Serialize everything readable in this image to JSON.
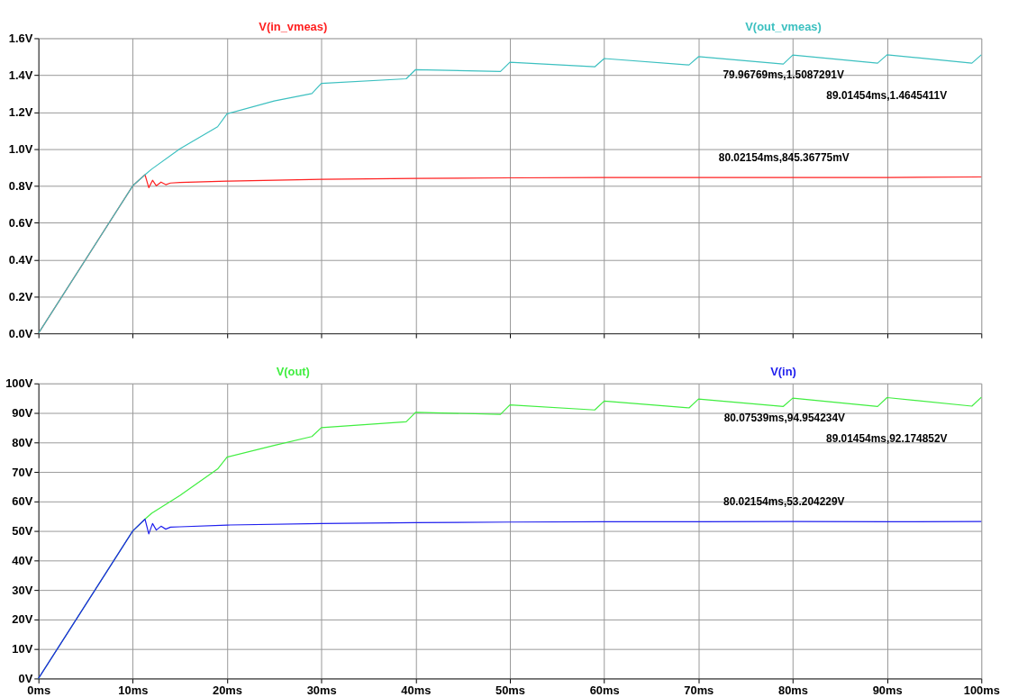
{
  "chart_data": [
    {
      "type": "line",
      "xlim": [
        0,
        100
      ],
      "ylim": [
        0,
        1.6
      ],
      "xticks": [
        {
          "value": 0,
          "label": null
        },
        {
          "value": 10,
          "label": null
        },
        {
          "value": 20,
          "label": null
        },
        {
          "value": 30,
          "label": null
        },
        {
          "value": 40,
          "label": null
        },
        {
          "value": 50,
          "label": null
        },
        {
          "value": 60,
          "label": null
        },
        {
          "value": 70,
          "label": null
        },
        {
          "value": 80,
          "label": null
        },
        {
          "value": 90,
          "label": null
        },
        {
          "value": 100,
          "label": null
        }
      ],
      "yticks": [
        {
          "value": 0,
          "label": "0.0V"
        },
        {
          "value": 0.2,
          "label": "0.2V"
        },
        {
          "value": 0.4,
          "label": "0.4V"
        },
        {
          "value": 0.6,
          "label": "0.6V"
        },
        {
          "value": 0.8,
          "label": "0.8V"
        },
        {
          "value": 1.0,
          "label": "1.0V"
        },
        {
          "value": 1.2,
          "label": "1.2V"
        },
        {
          "value": 1.4,
          "label": "1.4V"
        },
        {
          "value": 1.6,
          "label": "1.6V"
        }
      ],
      "tick_labels": "y",
      "grid": true,
      "legend": "top",
      "series": [
        {
          "name": "V(in_vmeas)",
          "color": "#ff2020",
          "x": [
            0,
            10,
            11.3,
            11.7,
            12.1,
            12.5,
            13,
            13.5,
            14,
            15,
            20,
            30,
            40,
            50,
            60,
            70,
            80,
            90,
            100
          ],
          "values": [
            0,
            0.8,
            0.86,
            0.79,
            0.83,
            0.8,
            0.82,
            0.806,
            0.815,
            0.818,
            0.825,
            0.835,
            0.84,
            0.843,
            0.845,
            0.845,
            0.845,
            0.845,
            0.848
          ]
        },
        {
          "name": "V(out_vmeas)",
          "color": "#3cc0c0",
          "x": [
            0,
            10,
            11.3,
            12,
            15,
            19,
            20,
            25,
            29,
            30,
            39,
            40,
            49,
            50,
            59,
            60,
            69,
            70,
            79,
            80,
            89,
            90,
            99,
            100
          ],
          "values": [
            0,
            0.8,
            0.86,
            0.89,
            1.0,
            1.12,
            1.19,
            1.26,
            1.3,
            1.355,
            1.38,
            1.43,
            1.42,
            1.47,
            1.445,
            1.49,
            1.455,
            1.5,
            1.46,
            1.509,
            1.465,
            1.51,
            1.465,
            1.51
          ]
        }
      ],
      "annotations": [
        {
          "text": "79.96769ms,1.5087291V",
          "x": 79.96769,
          "y": 1.5087291
        },
        {
          "text": "89.01454ms,1.4645411V",
          "x": 89.01454,
          "y": 1.4645411
        },
        {
          "text": "80.02154ms,845.36775mV",
          "x": 80.02154,
          "y": 0.84536775
        }
      ]
    },
    {
      "type": "line",
      "xlim": [
        0,
        100
      ],
      "ylim": [
        0,
        100
      ],
      "xticks": [
        {
          "value": 0,
          "label": "0ms"
        },
        {
          "value": 10,
          "label": "10ms"
        },
        {
          "value": 20,
          "label": "20ms"
        },
        {
          "value": 30,
          "label": "30ms"
        },
        {
          "value": 40,
          "label": "40ms"
        },
        {
          "value": 50,
          "label": "50ms"
        },
        {
          "value": 60,
          "label": "60ms"
        },
        {
          "value": 70,
          "label": "70ms"
        },
        {
          "value": 80,
          "label": "80ms"
        },
        {
          "value": 90,
          "label": "90ms"
        },
        {
          "value": 100,
          "label": "100ms"
        }
      ],
      "yticks": [
        {
          "value": 0,
          "label": "0V"
        },
        {
          "value": 10,
          "label": "10V"
        },
        {
          "value": 20,
          "label": "20V"
        },
        {
          "value": 30,
          "label": "30V"
        },
        {
          "value": 40,
          "label": "40V"
        },
        {
          "value": 50,
          "label": "50V"
        },
        {
          "value": 60,
          "label": "60V"
        },
        {
          "value": 70,
          "label": "70V"
        },
        {
          "value": 80,
          "label": "80V"
        },
        {
          "value": 90,
          "label": "90V"
        },
        {
          "value": 100,
          "label": "100V"
        }
      ],
      "grid": true,
      "legend": "top",
      "series": [
        {
          "name": "V(out)",
          "color": "#40ee40",
          "x": [
            0,
            10,
            11.3,
            12,
            15,
            19,
            20,
            25,
            29,
            30,
            39,
            40,
            49,
            50,
            59,
            60,
            69,
            70,
            79,
            80,
            89,
            90,
            99,
            100
          ],
          "values": [
            0,
            50,
            54,
            56,
            62,
            71,
            75,
            79,
            82,
            85,
            87,
            90.2,
            89.5,
            92.7,
            91,
            94,
            91.7,
            94.7,
            92.2,
            95,
            92.2,
            95.2,
            92.3,
            95.3
          ]
        },
        {
          "name": "V(in)",
          "color": "#2020ee",
          "x": [
            0,
            10,
            11.3,
            11.7,
            12.1,
            12.5,
            13,
            13.5,
            14,
            15,
            20,
            30,
            40,
            50,
            60,
            70,
            80,
            90,
            100
          ],
          "values": [
            0,
            50,
            54,
            49,
            52.5,
            50.3,
            51.6,
            50.6,
            51.3,
            51.4,
            52,
            52.5,
            52.8,
            53,
            53.1,
            53.1,
            53.2,
            53.1,
            53.2
          ]
        }
      ],
      "annotations": [
        {
          "text": "80.07539ms,94.954234V",
          "x": 80.07539,
          "y": 94.954234
        },
        {
          "text": "89.01454ms,92.174852V",
          "x": 89.01454,
          "y": 92.174852
        },
        {
          "text": "80.02154ms,53.204229V",
          "x": 80.02154,
          "y": 53.204229
        }
      ]
    }
  ]
}
